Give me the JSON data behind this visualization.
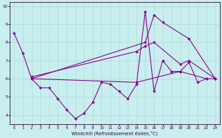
{
  "background_color": "#c8eef0",
  "grid_color": "#aaddcc",
  "line_color": "#880088",
  "xlabel": "Windchill (Refroidissement éolien,°C)",
  "xlim_min": -0.5,
  "xlim_max": 23.5,
  "ylim_min": 3.5,
  "ylim_max": 10.2,
  "yticks": [
    4,
    5,
    6,
    7,
    8,
    9,
    10
  ],
  "xticks": [
    0,
    1,
    2,
    3,
    4,
    5,
    6,
    7,
    8,
    9,
    10,
    11,
    12,
    13,
    14,
    15,
    16,
    17,
    18,
    19,
    20,
    21,
    22,
    23
  ],
  "s1_x": [
    0,
    1,
    2,
    3,
    4,
    5,
    6,
    7,
    8,
    9,
    10,
    11,
    12,
    13,
    14,
    15,
    16,
    17,
    18,
    19,
    20,
    21,
    22
  ],
  "s1_y": [
    8.5,
    7.4,
    6.0,
    5.5,
    5.5,
    4.9,
    4.3,
    3.8,
    4.1,
    4.7,
    5.8,
    5.7,
    5.3,
    4.9,
    5.7,
    9.7,
    5.3,
    7.0,
    6.4,
    6.4,
    6.9,
    5.8,
    6.0
  ],
  "s2_x": [
    2,
    15,
    16,
    17,
    20,
    23
  ],
  "s2_y": [
    6.0,
    8.0,
    9.5,
    9.1,
    8.2,
    6.0
  ],
  "s3_x": [
    2,
    14,
    15,
    16,
    19,
    20,
    23
  ],
  "s3_y": [
    6.1,
    7.5,
    7.8,
    8.0,
    6.8,
    7.0,
    6.0
  ],
  "s4_x": [
    2,
    14,
    19,
    22,
    23
  ],
  "s4_y": [
    6.0,
    5.8,
    6.4,
    6.0,
    6.0
  ]
}
